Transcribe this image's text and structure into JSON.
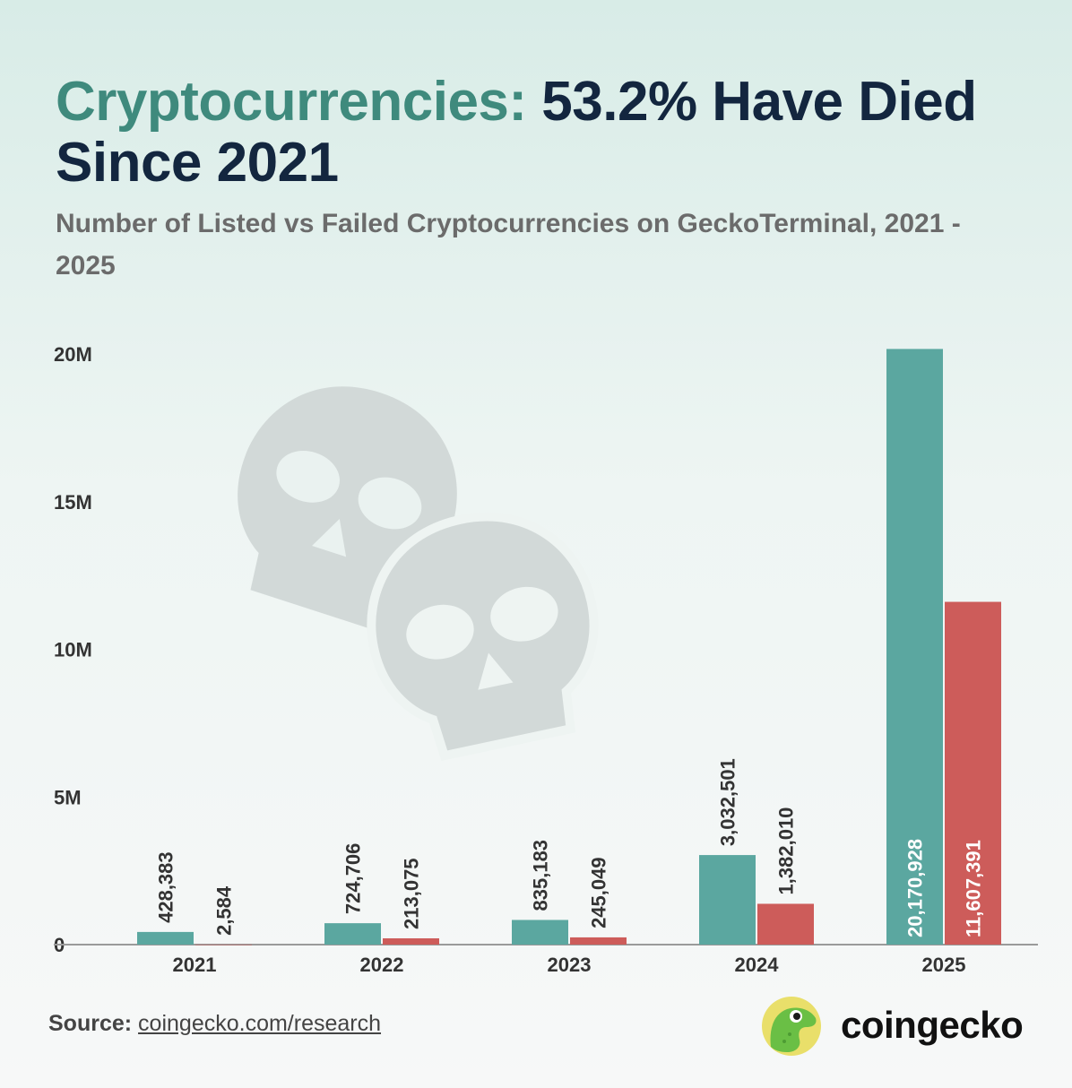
{
  "header": {
    "title_accent": "Cryptocurrencies:",
    "title_rest": " 53.2% Have Died Since 2021",
    "subtitle": "Number of Listed vs Failed Cryptocurrencies on GeckoTerminal, 2021 - 2025"
  },
  "footer": {
    "source_label": "Source:",
    "source_link": "coingecko.com/research",
    "brand_name": "coingecko"
  },
  "colors": {
    "listed": "#5ba7a0",
    "failed": "#cd5c5a",
    "accent": "#3f8a7d",
    "skull": "#d2d9d8"
  },
  "icons": {
    "watermark": "skull-icon",
    "brand": "gecko-logo-icon"
  },
  "chart_data": {
    "type": "bar",
    "categories": [
      "2021",
      "2022",
      "2023",
      "2024",
      "2025"
    ],
    "series": [
      {
        "name": "",
        "color": "#5ba7a0",
        "values": [
          428383,
          724706,
          835183,
          3032501,
          20170928
        ]
      },
      {
        "name": "",
        "color": "#cd5c5a",
        "values": [
          2584,
          213075,
          245049,
          1382010,
          11607391
        ]
      }
    ],
    "value_labels": [
      [
        "428,383",
        "724,706",
        "835,183",
        "3,032,501",
        "20,170,928"
      ],
      [
        "2,584",
        "213,075",
        "245,049",
        "1,382,010",
        "11,607,391"
      ]
    ],
    "yticks": [
      0,
      5000000,
      10000000,
      15000000,
      20000000
    ],
    "ytick_labels": [
      "0",
      "5M",
      "10M",
      "15M",
      "20M"
    ],
    "ylim": [
      0,
      20000000
    ],
    "xlabel": "",
    "ylabel": "",
    "grid": false,
    "legend": "none"
  }
}
